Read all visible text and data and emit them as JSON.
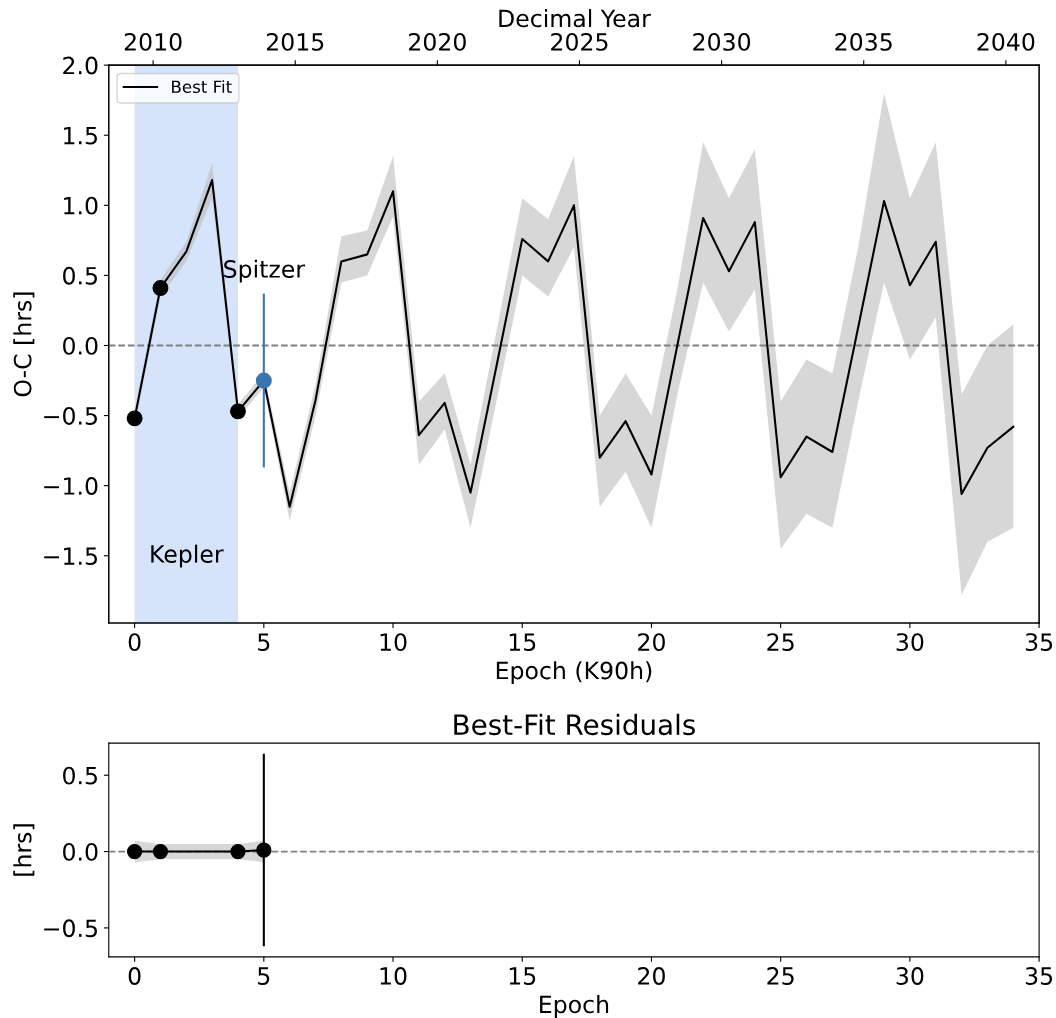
{
  "chart_data": [
    {
      "type": "line",
      "xlabel": "Epoch (K90h)",
      "ylabel": "O-C [hrs]",
      "x2label": "Decimal Year",
      "xlim": [
        -1,
        35
      ],
      "xticks": [
        0,
        5,
        10,
        15,
        20,
        25,
        30,
        35
      ],
      "ylim": [
        -1.98,
        2.0
      ],
      "yticks": [
        {
          "value": -1.5,
          "label": "−1.5"
        },
        {
          "value": -1.0,
          "label": "−1.0"
        },
        {
          "value": -0.5,
          "label": "−0.5"
        },
        {
          "value": 0,
          "label": "0.0"
        },
        {
          "value": 0.5,
          "label": "0.5"
        },
        {
          "value": 1.0,
          "label": "1.0"
        },
        {
          "value": 1.5,
          "label": "1.5"
        },
        {
          "value": 2.0,
          "label": "2.0"
        }
      ],
      "x2lim": [
        2008.44,
        2041.17
      ],
      "x2ticks": [
        2010,
        2015,
        2020,
        2025,
        2030,
        2035,
        2040
      ],
      "legend": "top left",
      "grid": false,
      "bands": [
        {
          "axis": "x",
          "from": 0,
          "to": 4,
          "label": "Kepler",
          "color": "#d5e4fa"
        }
      ],
      "ref_lines": [
        {
          "axis": "y",
          "value": 0,
          "color": "#808080",
          "line_style": "dashed"
        }
      ],
      "annotations": [
        "Spitzer"
      ],
      "series": [
        {
          "name": "Best Fit",
          "color": "#000000",
          "marker": "none",
          "line_style": "solid",
          "x": [
            0,
            1,
            2,
            3,
            4,
            5,
            6,
            7,
            8,
            9,
            10,
            11,
            12,
            13,
            14,
            15,
            16,
            17,
            18,
            19,
            20,
            21,
            22,
            23,
            24,
            25,
            26,
            27,
            28,
            29,
            30,
            31,
            32,
            33,
            34
          ],
          "values": [
            -0.52,
            0.41,
            0.67,
            1.18,
            -0.47,
            -0.25,
            -1.15,
            -0.39,
            0.6,
            0.65,
            1.1,
            -0.64,
            -0.41,
            -1.05,
            -0.15,
            0.76,
            0.6,
            1.0,
            -0.8,
            -0.54,
            -0.92,
            0.0,
            0.91,
            0.53,
            0.88,
            -0.94,
            -0.65,
            -0.76,
            0.13,
            1.03,
            0.43,
            0.74,
            -1.06,
            -0.73,
            -0.58
          ],
          "lower": [
            -0.58,
            0.35,
            0.6,
            1.05,
            -0.52,
            -0.3,
            -1.25,
            -0.5,
            0.45,
            0.5,
            0.92,
            -0.85,
            -0.6,
            -1.3,
            -0.4,
            0.5,
            0.35,
            0.7,
            -1.15,
            -0.9,
            -1.3,
            -0.35,
            0.45,
            0.1,
            0.4,
            -1.45,
            -1.2,
            -1.3,
            -0.4,
            0.45,
            -0.1,
            0.2,
            -1.78,
            -1.4,
            -1.3
          ],
          "upper": [
            -0.46,
            0.47,
            0.74,
            1.3,
            -0.42,
            -0.2,
            -1.05,
            -0.28,
            0.78,
            0.82,
            1.35,
            -0.4,
            -0.2,
            -0.85,
            0.1,
            1.05,
            0.9,
            1.35,
            -0.5,
            -0.2,
            -0.5,
            0.4,
            1.45,
            1.05,
            1.4,
            -0.4,
            -0.1,
            -0.2,
            0.7,
            1.8,
            1.05,
            1.45,
            -0.35,
            0.0,
            0.15
          ]
        },
        {
          "type": "scatter",
          "color": "#000000",
          "marker": "circle",
          "x": [
            0,
            1,
            4
          ],
          "values": [
            -0.52,
            0.41,
            -0.47
          ]
        },
        {
          "type": "scatter",
          "color": "#3a75b0",
          "marker": "circle",
          "x": [
            5
          ],
          "values": [
            -0.25
          ],
          "errors": [
            0.62
          ]
        }
      ]
    },
    {
      "type": "line",
      "title": "Best-Fit Residuals",
      "xlabel": "Epoch",
      "ylabel": "[hrs]",
      "xlim": [
        -1,
        35
      ],
      "xticks": [
        0,
        5,
        10,
        15,
        20,
        25,
        30,
        35
      ],
      "ylim": [
        -0.69,
        0.71
      ],
      "yticks": [
        {
          "value": -0.5,
          "label": "−0.5"
        },
        {
          "value": 0,
          "label": "0.0"
        },
        {
          "value": 0.5,
          "label": "0.5"
        }
      ],
      "grid": false,
      "ref_lines": [
        {
          "axis": "y",
          "value": 0,
          "color": "#808080",
          "line_style": "dashed"
        }
      ],
      "series": [
        {
          "color": "#000000",
          "marker": "circle",
          "line_style": "solid",
          "x": [
            0,
            1,
            4,
            5
          ],
          "values": [
            0,
            0,
            0,
            0.01
          ],
          "lower": [
            -0.07,
            -0.05,
            -0.05,
            -0.07
          ],
          "upper": [
            0.07,
            0.05,
            0.05,
            0.07
          ],
          "errors": [
            null,
            null,
            null,
            0.63
          ]
        }
      ]
    }
  ]
}
